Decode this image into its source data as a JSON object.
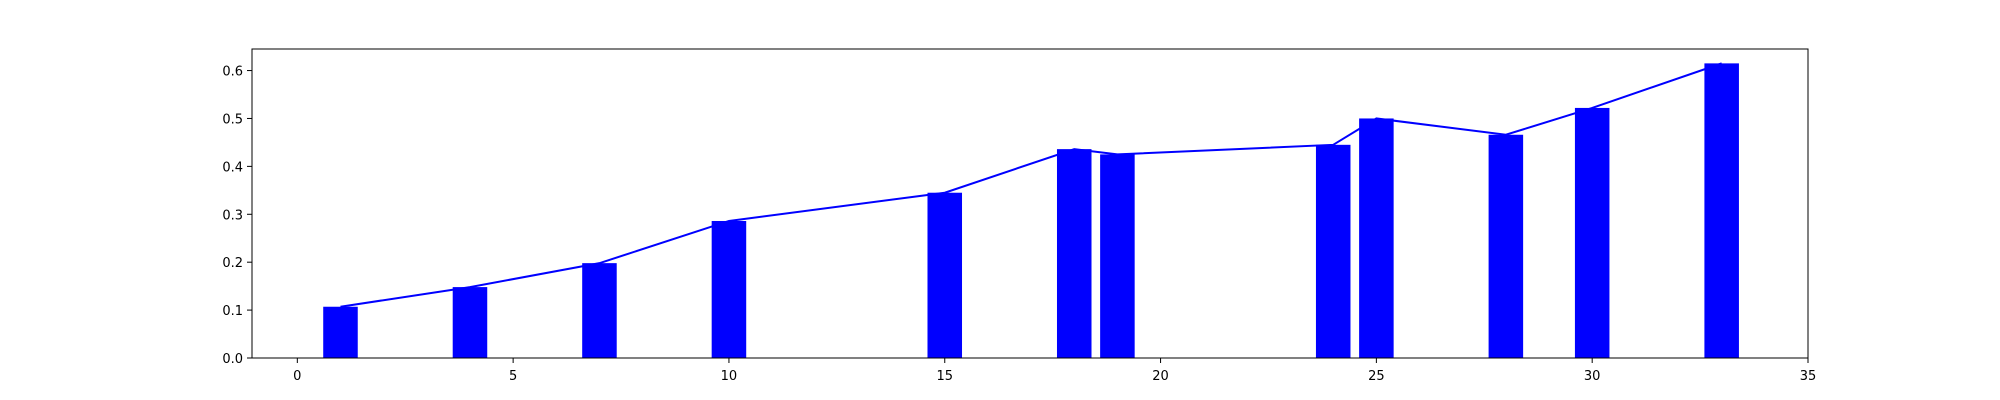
{
  "chart_data": {
    "type": "bar",
    "x": [
      1,
      4,
      7,
      10,
      15,
      18,
      19,
      24,
      25,
      28,
      30,
      33
    ],
    "values": [
      0.107,
      0.148,
      0.198,
      0.286,
      0.345,
      0.436,
      0.425,
      0.445,
      0.5,
      0.466,
      0.522,
      0.615
    ],
    "line_overlay": true,
    "bar_width": 0.8,
    "title": "",
    "xlabel": "",
    "ylabel": "",
    "xlim": [
      -1.05,
      35
    ],
    "ylim": [
      0,
      0.645
    ],
    "xticks": [
      0,
      5,
      10,
      15,
      20,
      25,
      30,
      35
    ],
    "yticks": [
      0.0,
      0.1,
      0.2,
      0.3,
      0.4,
      0.5,
      0.6
    ],
    "xtick_labels": [
      "0",
      "5",
      "10",
      "15",
      "20",
      "25",
      "30",
      "35"
    ],
    "ytick_labels": [
      "0.0",
      "0.1",
      "0.2",
      "0.3",
      "0.4",
      "0.5",
      "0.6"
    ],
    "grid": false,
    "legend": false,
    "colors": {
      "bar": "#0000ff",
      "line": "#0000ff",
      "axes": "#000000"
    }
  }
}
